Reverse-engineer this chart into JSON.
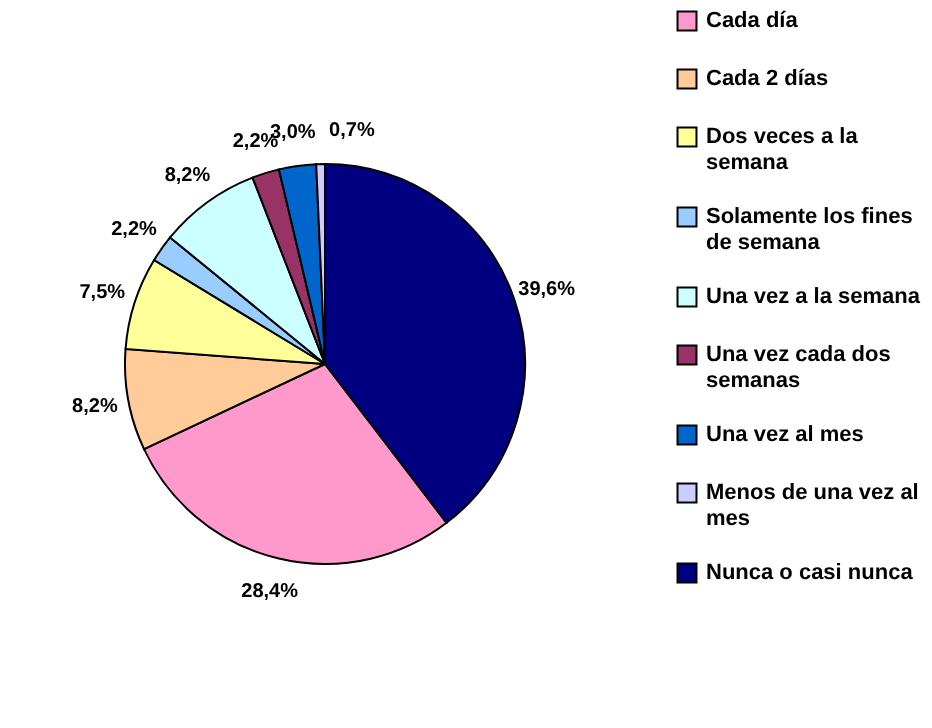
{
  "chart_data": {
    "type": "pie",
    "categories": [
      "Cada día",
      "Cada 2 días",
      "Dos veces a la semana",
      "Solamente los fines de semana",
      "Una vez a la semana",
      "Una vez cada dos semanas",
      "Una vez al mes",
      "Menos de una vez al mes",
      "Nunca o casi nunca"
    ],
    "values": [
      28.4,
      8.2,
      7.5,
      2.2,
      8.2,
      2.2,
      3.0,
      0.7,
      39.6
    ],
    "colors": [
      "#ff99cc",
      "#ffcc99",
      "#ffff99",
      "#99ccff",
      "#ccffff",
      "#993366",
      "#0066cc",
      "#ccccff",
      "#000080"
    ],
    "value_labels": [
      "28,4%",
      "8,2%",
      "7,5%",
      "2,2%",
      "8,2%",
      "2,2%",
      "3,0%",
      "0,7%",
      "39,6%"
    ],
    "legend": "right"
  }
}
